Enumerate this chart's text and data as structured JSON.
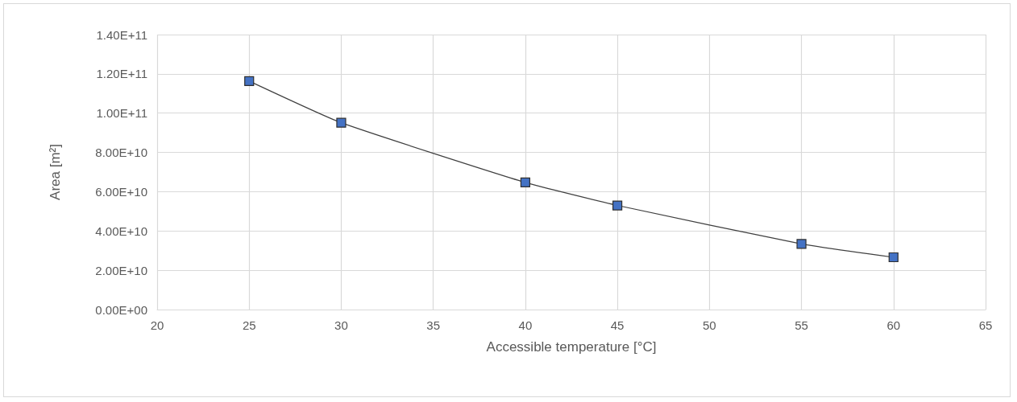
{
  "chart_data": {
    "type": "line",
    "xlabel": "Accessible temperature [°C]",
    "ylabel": "Area [m²]",
    "x": [
      25,
      30,
      40,
      45,
      55,
      60
    ],
    "series": [
      {
        "color": "#4472c4",
        "values": [
          116300000000.0,
          95100000000.0,
          64700000000.0,
          53000000000.0,
          33400000000.0,
          26600000000.0
        ]
      }
    ],
    "xlim": [
      20,
      65
    ],
    "xticks": [
      20,
      25,
      30,
      35,
      40,
      45,
      50,
      55,
      60,
      65
    ],
    "ylim": [
      0,
      140000000000.0
    ],
    "yticks": [
      {
        "value": 0,
        "label": "0.00E+00"
      },
      {
        "value": 20000000000.0,
        "label": "2.00E+10"
      },
      {
        "value": 40000000000.0,
        "label": "4.00E+10"
      },
      {
        "value": 60000000000.0,
        "label": "6.00E+10"
      },
      {
        "value": 80000000000.0,
        "label": "8.00E+10"
      },
      {
        "value": 100000000000.0,
        "label": "1.00E+11"
      },
      {
        "value": 120000000000.0,
        "label": "1.20E+11"
      },
      {
        "value": 140000000000.0,
        "label": "1.40E+11"
      }
    ],
    "grid": true,
    "marker": "square",
    "line_style": "solid"
  }
}
